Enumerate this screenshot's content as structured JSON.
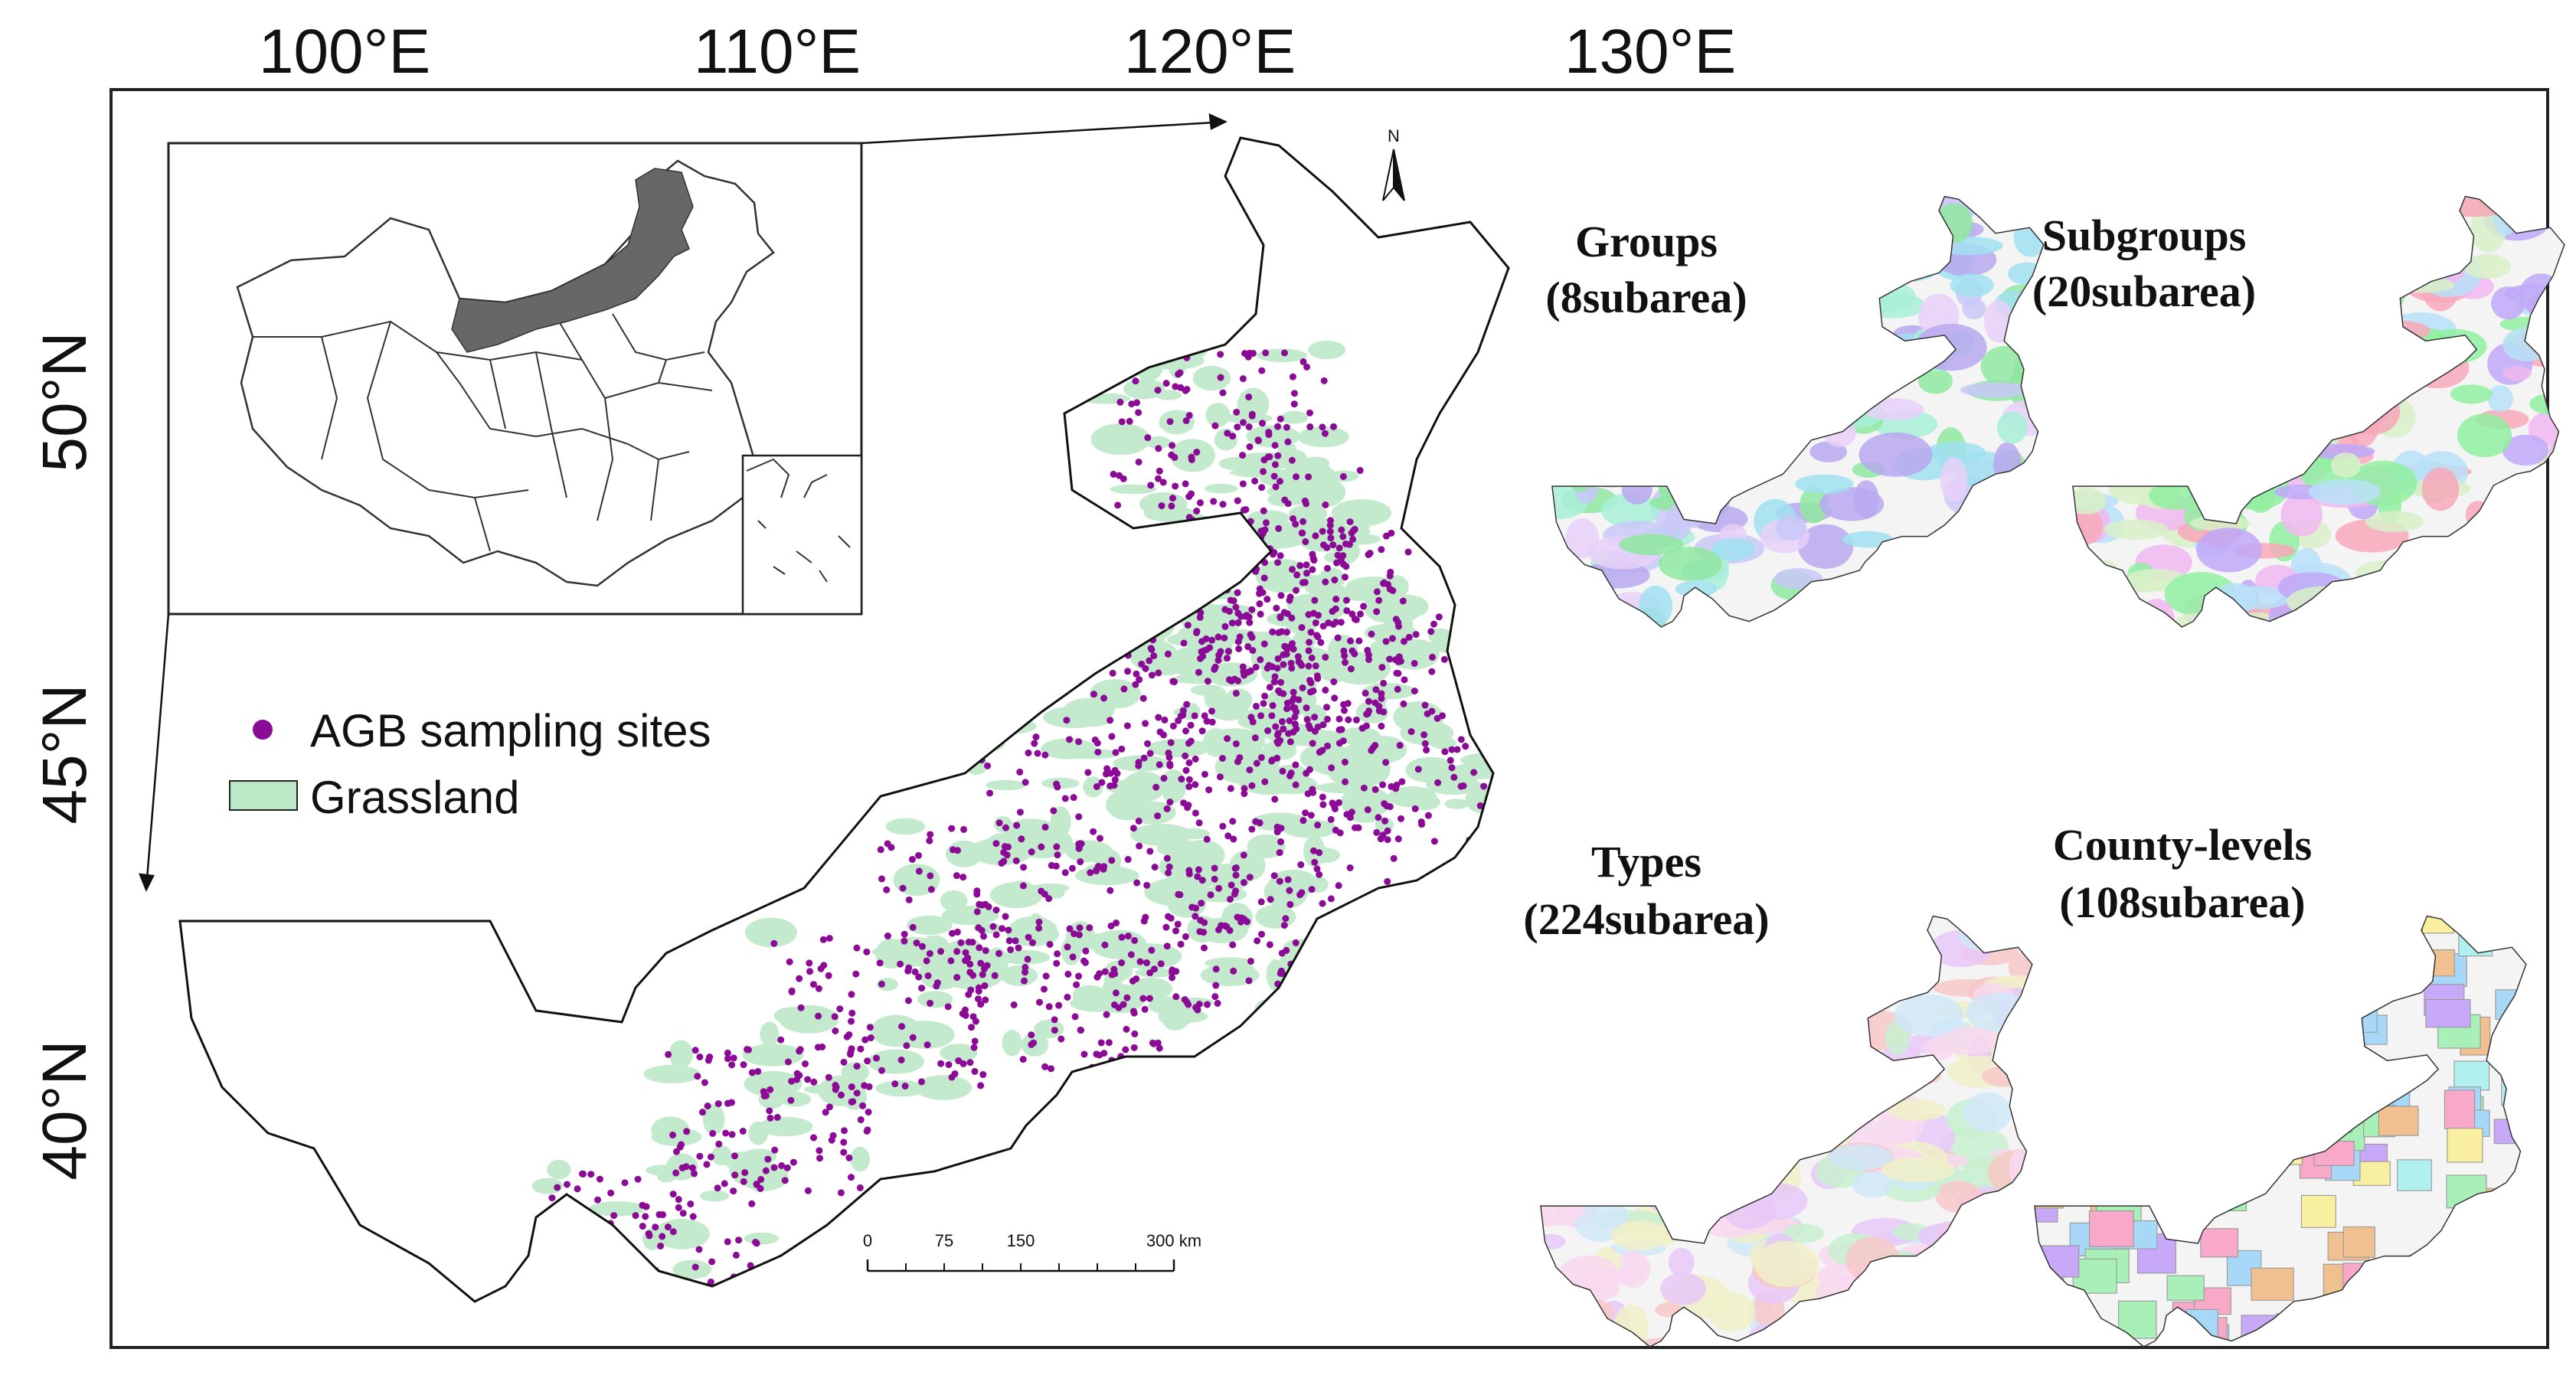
{
  "axes": {
    "longitude_labels": [
      "100°E",
      "110°E",
      "120°E",
      "130°E"
    ],
    "latitude_labels": [
      "50°N",
      "45°N",
      "40°N"
    ]
  },
  "legend": {
    "sites_label": "AGB sampling sites",
    "grassland_label": "Grassland",
    "sites_color": "#8B0A96",
    "grassland_color": "#BDE8C8"
  },
  "north_arrow": {
    "label": "N"
  },
  "scale_bar": {
    "labels": [
      "0",
      "75",
      "150",
      "300 km"
    ]
  },
  "panels": [
    {
      "title": "Groups",
      "subtitle": "(8subarea)"
    },
    {
      "title": "Subgroups",
      "subtitle": "(20subarea)"
    },
    {
      "title": "Types",
      "subtitle": "(224subarea)"
    },
    {
      "title": "County-levels",
      "subtitle": "(108subarea)"
    }
  ]
}
